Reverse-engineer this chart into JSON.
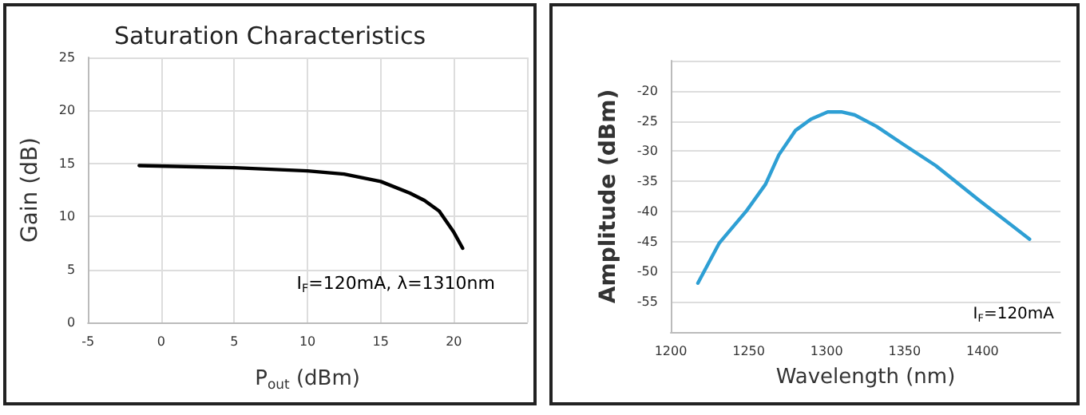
{
  "chart_data": [
    {
      "type": "line",
      "title": "Saturation Characteristics",
      "xlabel": "P$_{out}$ (dBm)",
      "ylabel": "Gain (dB)",
      "annotations": [
        "I$_{F}$=120mA, λ=1310nm"
      ],
      "xlim": [
        -5,
        25
      ],
      "xticks": [
        -5,
        0,
        5,
        10,
        15,
        20,
        {
          "value": 25,
          "label": null
        }
      ],
      "ylim": [
        0,
        25
      ],
      "yticks": [
        0,
        5,
        10,
        15,
        20,
        25
      ],
      "grid": true,
      "series": [
        {
          "color": "#000000",
          "x": [
            -1.5,
            5,
            10,
            12.5,
            15,
            17,
            18,
            19,
            20,
            20.6
          ],
          "values": [
            14.8,
            14.6,
            14.3,
            14.0,
            13.3,
            12.2,
            11.5,
            10.5,
            8.5,
            7.0
          ]
        }
      ]
    },
    {
      "type": "line",
      "xlabel": "Wavelength (nm)",
      "ylabel": "Amplitude (dBm)",
      "annotations": [
        "I$_{F}$=120mA"
      ],
      "xlim": [
        1200,
        1450
      ],
      "xticks": [
        1200,
        1250,
        1300,
        1350,
        1400
      ],
      "ylim": [
        -60,
        -15
      ],
      "yticks": [
        {
          "value": -60,
          "label": null
        },
        -55,
        -50,
        -45,
        -40,
        -35,
        -30,
        -25,
        -20,
        {
          "value": -15,
          "label": null
        }
      ],
      "grid": "y",
      "series": [
        {
          "color": "#2e9fd4",
          "x": [
            1217.4,
            1231,
            1248.6,
            1260.8,
            1269.4,
            1279.9,
            1290,
            1300.7,
            1309.4,
            1318,
            1332,
            1349.3,
            1370,
            1398,
            1430.2
          ],
          "values": [
            -51.9,
            -45.3,
            -39.9,
            -35.5,
            -30.6,
            -26.6,
            -24.7,
            -23.5,
            -23.5,
            -24.0,
            -25.9,
            -28.9,
            -32.4,
            -38.2,
            -44.6
          ]
        }
      ]
    }
  ]
}
